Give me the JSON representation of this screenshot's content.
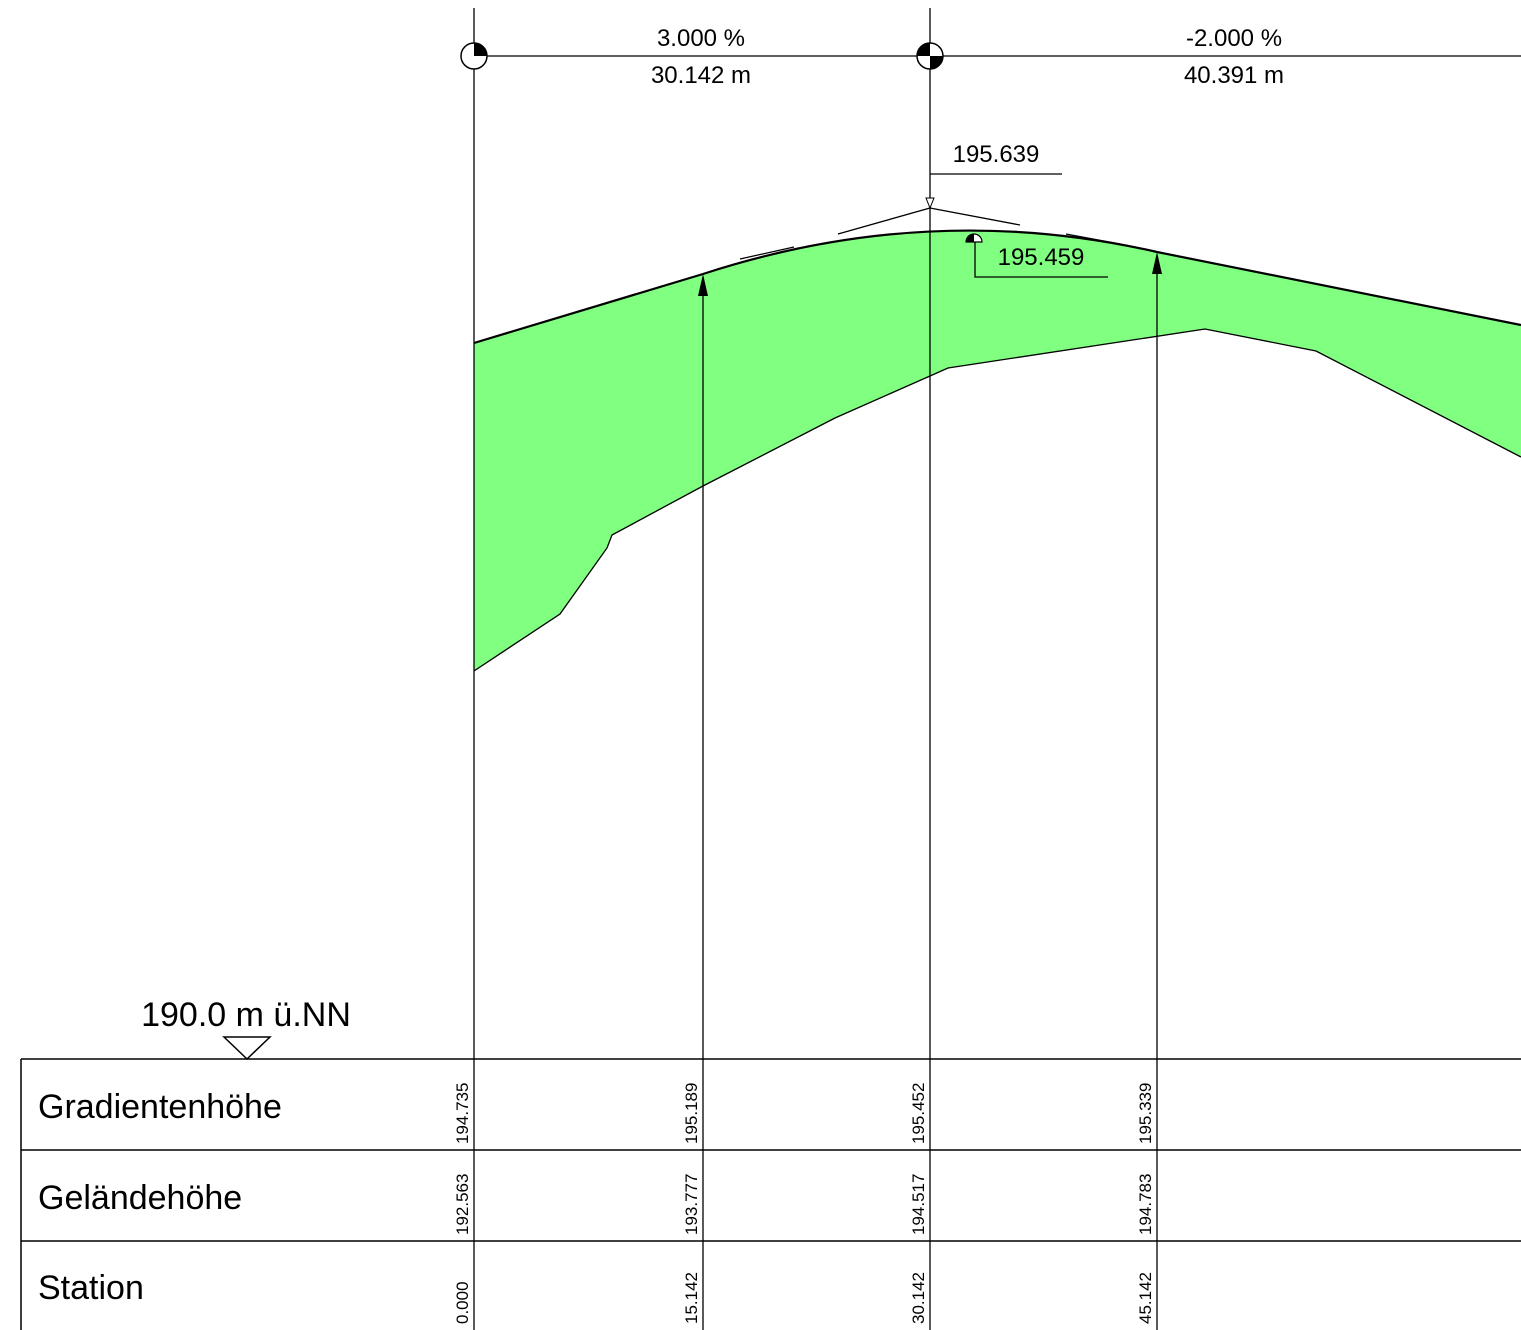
{
  "grades": [
    {
      "percent": "3.000 %",
      "length": "30.142 m"
    },
    {
      "percent": "-2.000 %",
      "length": "40.391 m"
    }
  ],
  "pvi_elevation": "195.639",
  "high_point_elevation": "195.459",
  "datum_label": "190.0 m ü.NN",
  "rows": [
    {
      "label": "Gradientenhöhe",
      "values": [
        "194.735",
        "195.189",
        "195.452",
        "195.339"
      ]
    },
    {
      "label": "Geländehöhe",
      "values": [
        "192.563",
        "193.777",
        "194.517",
        "194.783"
      ]
    },
    {
      "label": "Station",
      "values": [
        "0.000",
        "15.142",
        "30.142",
        "45.142"
      ]
    }
  ],
  "colors": {
    "fill": "#80ff80",
    "line": "#000000"
  }
}
